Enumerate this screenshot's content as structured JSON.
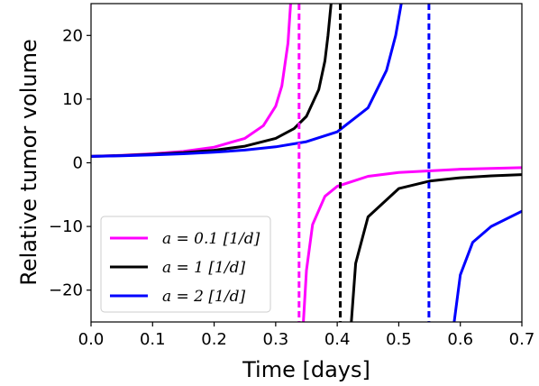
{
  "chart_data": {
    "type": "line",
    "xlabel": "Time [days]",
    "ylabel": "Relative tumor volume",
    "xlim": [
      0.0,
      0.7
    ],
    "ylim": [
      -25,
      25
    ],
    "xticks": [
      "0.0",
      "0.1",
      "0.2",
      "0.3",
      "0.4",
      "0.5",
      "0.6",
      "0.7"
    ],
    "yticks": [
      "−20",
      "−10",
      "0",
      "10",
      "20"
    ],
    "grid": false,
    "legend_position": "lower-left",
    "series": [
      {
        "name": "a = 0.1 [1/d]",
        "color": "#ff00ff",
        "asymptote": 0.338,
        "segments": [
          [
            [
              0.0,
              1.0
            ],
            [
              0.05,
              1.17
            ],
            [
              0.1,
              1.42
            ],
            [
              0.15,
              1.79
            ],
            [
              0.2,
              2.45
            ],
            [
              0.25,
              3.84
            ],
            [
              0.28,
              5.83
            ],
            [
              0.3,
              8.89
            ],
            [
              0.31,
              12.07
            ],
            [
              0.32,
              18.78
            ],
            [
              0.325,
              26.0
            ]
          ],
          [
            [
              0.345,
              -25.0
            ],
            [
              0.35,
              -16.9
            ],
            [
              0.36,
              -9.7
            ],
            [
              0.38,
              -5.27
            ],
            [
              0.4,
              -3.69
            ],
            [
              0.45,
              -2.12
            ],
            [
              0.5,
              -1.51
            ],
            [
              0.6,
              -1.0
            ],
            [
              0.7,
              -0.77
            ]
          ]
        ]
      },
      {
        "name": "a = 1 [1/d]",
        "color": "#000000",
        "asymptote": 0.405,
        "segments": [
          [
            [
              0.0,
              1.0
            ],
            [
              0.05,
              1.14
            ],
            [
              0.1,
              1.33
            ],
            [
              0.15,
              1.59
            ],
            [
              0.2,
              1.97
            ],
            [
              0.25,
              2.6
            ],
            [
              0.3,
              3.84
            ],
            [
              0.33,
              5.37
            ],
            [
              0.35,
              7.29
            ],
            [
              0.37,
              11.52
            ],
            [
              0.38,
              16.0
            ],
            [
              0.385,
              20.0
            ],
            [
              0.391,
              26.0
            ]
          ],
          [
            [
              0.423,
              -25.0
            ],
            [
              0.43,
              -15.8
            ],
            [
              0.45,
              -8.5
            ],
            [
              0.5,
              -4.05
            ],
            [
              0.55,
              -2.88
            ],
            [
              0.6,
              -2.35
            ],
            [
              0.65,
              -2.05
            ],
            [
              0.7,
              -1.86
            ]
          ]
        ]
      },
      {
        "name": "a = 2 [1/d]",
        "color": "#0000ff",
        "asymptote": 0.549,
        "segments": [
          [
            [
              0.0,
              1.0
            ],
            [
              0.05,
              1.11
            ],
            [
              0.1,
              1.25
            ],
            [
              0.15,
              1.42
            ],
            [
              0.2,
              1.66
            ],
            [
              0.25,
              2.0
            ],
            [
              0.3,
              2.5
            ],
            [
              0.35,
              3.31
            ],
            [
              0.4,
              4.86
            ],
            [
              0.45,
              8.63
            ],
            [
              0.48,
              14.5
            ],
            [
              0.495,
              20.0
            ],
            [
              0.505,
              25.5
            ]
          ],
          [
            [
              0.59,
              -25.0
            ],
            [
              0.6,
              -17.6
            ],
            [
              0.62,
              -12.5
            ],
            [
              0.65,
              -10.0
            ],
            [
              0.7,
              -7.6
            ]
          ]
        ]
      }
    ]
  }
}
